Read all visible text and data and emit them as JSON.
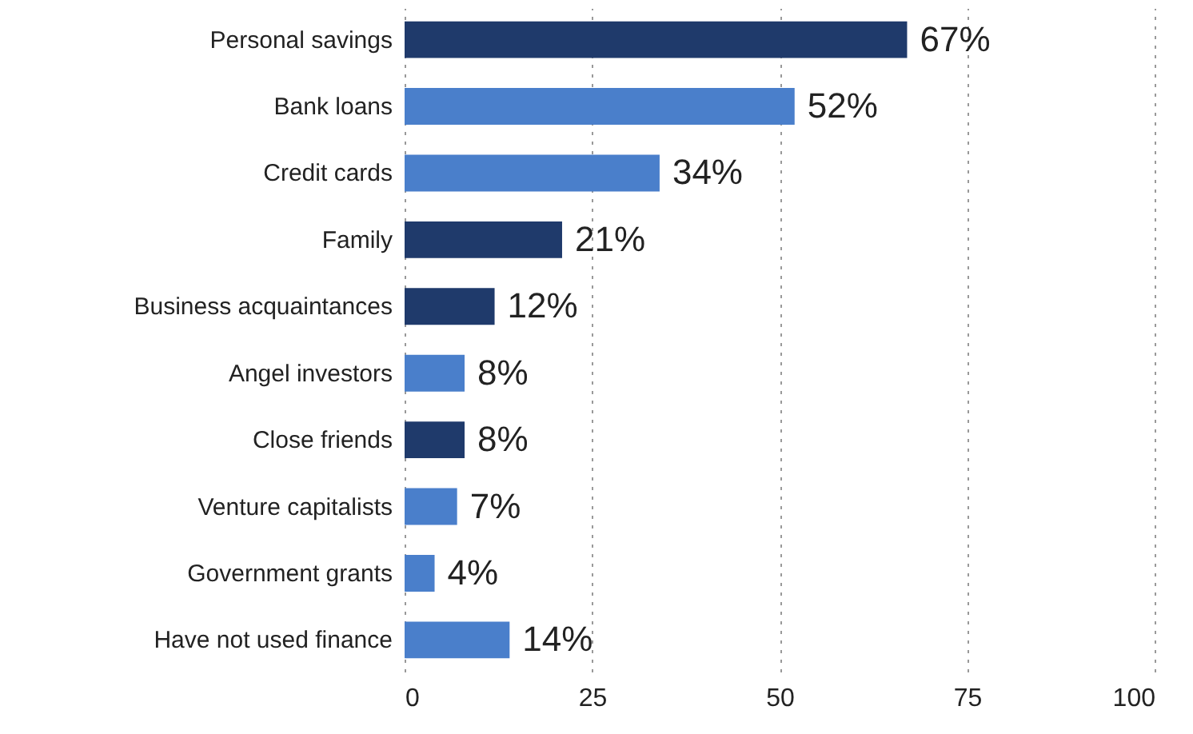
{
  "chart_data": {
    "type": "bar",
    "orientation": "horizontal",
    "categories": [
      "Personal savings",
      "Bank loans",
      "Credit cards",
      "Family",
      "Business acquaintances",
      "Angel investors",
      "Close friends",
      "Venture capitalists",
      "Government grants",
      "Have not used finance"
    ],
    "values": [
      67,
      52,
      34,
      21,
      12,
      8,
      8,
      7,
      4,
      14
    ],
    "colors": [
      "#1f3a6b",
      "#4a7fcb",
      "#4a7fcb",
      "#1f3a6b",
      "#1f3a6b",
      "#4a7fcb",
      "#1f3a6b",
      "#4a7fcb",
      "#4a7fcb",
      "#4a7fcb"
    ],
    "value_labels": [
      "67%",
      "52%",
      "34%",
      "21%",
      "12%",
      "8%",
      "8%",
      "7%",
      "4%",
      "14%"
    ],
    "xlim": [
      0,
      100
    ],
    "xticks": [
      0,
      25,
      50,
      75,
      100
    ],
    "grid": "x"
  }
}
